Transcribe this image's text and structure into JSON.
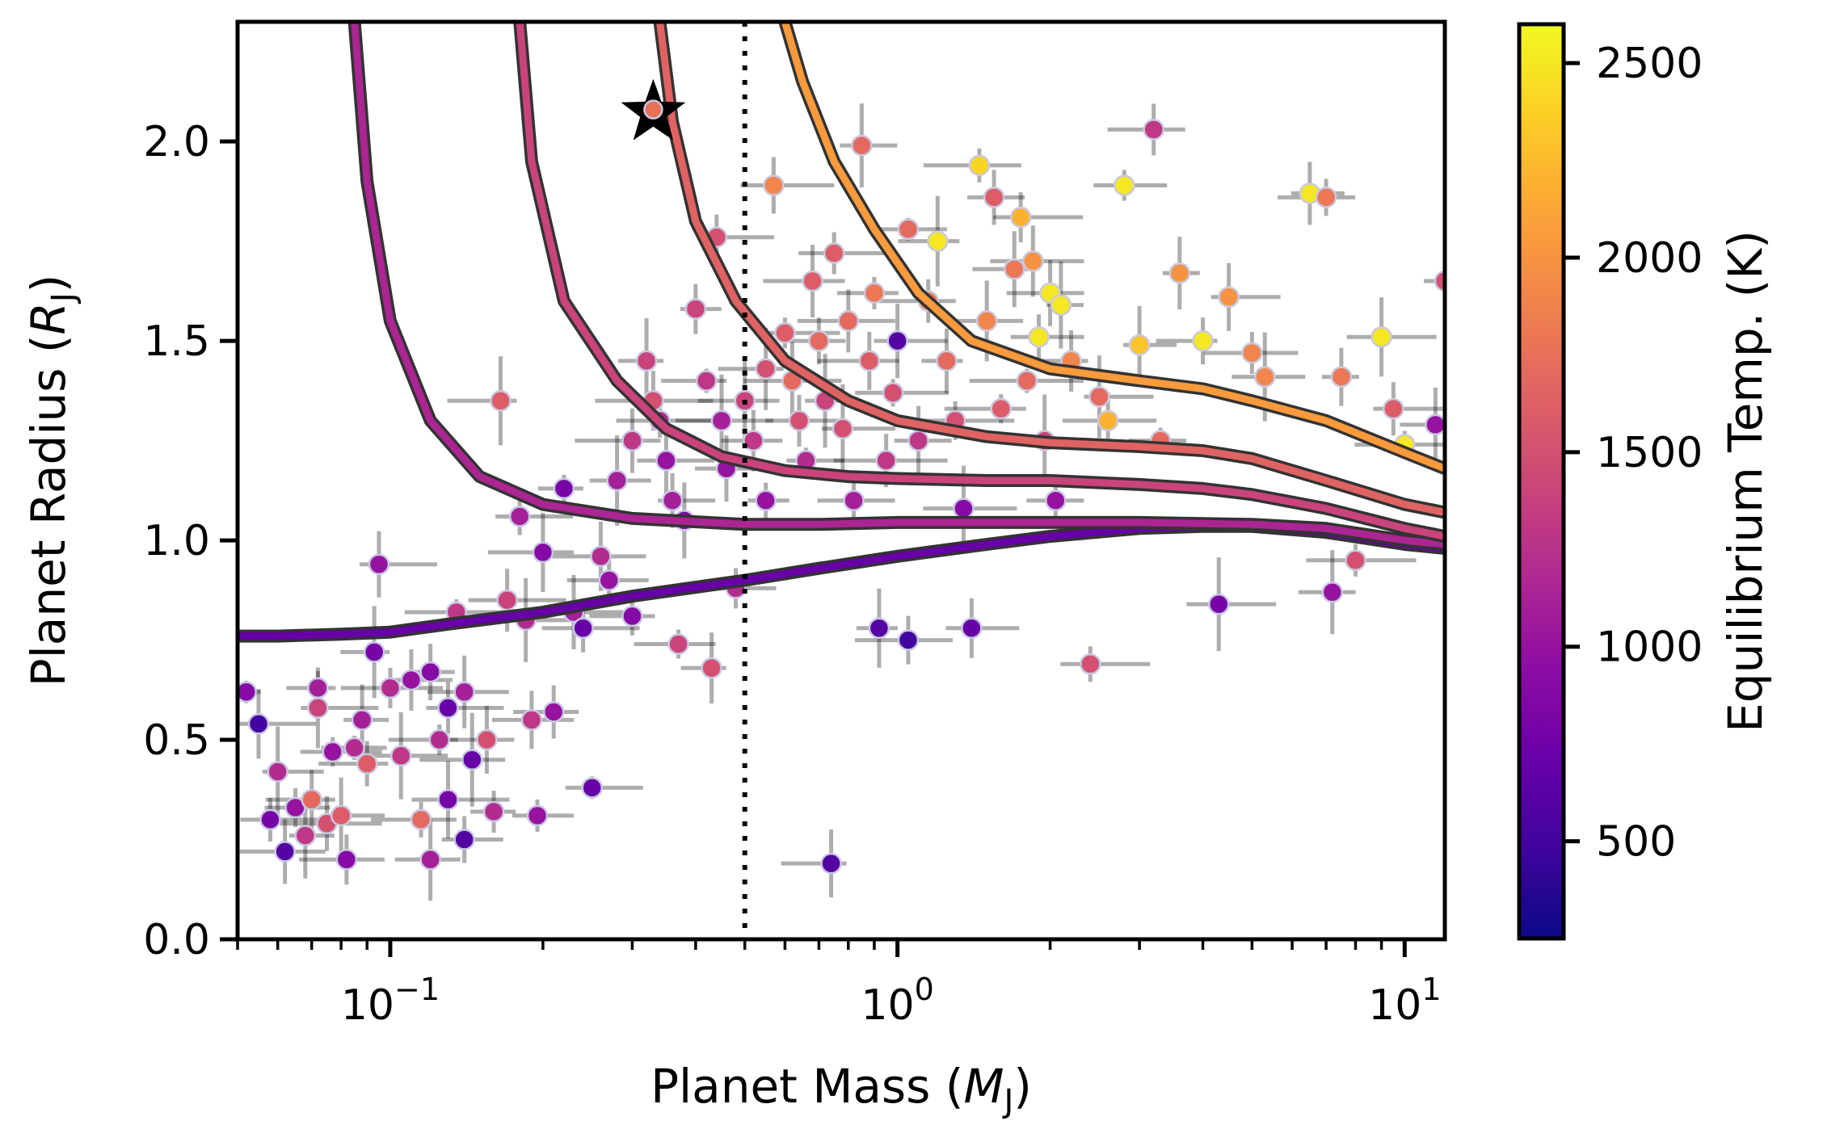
{
  "chart_data": {
    "type": "scatter",
    "title": "",
    "xlabel": "Planet Mass",
    "xlabel_symbol": "M",
    "xlabel_sub": "J",
    "ylabel": "Planet Radius",
    "ylabel_symbol": "R",
    "ylabel_sub": "J",
    "xscale": "log",
    "xlim": [
      0.05,
      12
    ],
    "ylim": [
      0,
      2.3
    ],
    "x_ticks": [
      {
        "value": 0.1,
        "base": "10",
        "exp": "−1"
      },
      {
        "value": 1,
        "base": "10",
        "exp": "0"
      },
      {
        "value": 10,
        "base": "10",
        "exp": "1"
      }
    ],
    "y_ticks": [
      {
        "value": 0.0,
        "label": "0.0"
      },
      {
        "value": 0.5,
        "label": "0.5"
      },
      {
        "value": 1.0,
        "label": "1.0"
      },
      {
        "value": 1.5,
        "label": "1.5"
      },
      {
        "value": 2.0,
        "label": "2.0"
      }
    ],
    "reference_line": {
      "x": 0.5,
      "style": "dotted"
    },
    "colorbar": {
      "label": "Equilibrium Temp. (K)",
      "vmin": 250,
      "vmax": 2600,
      "ticks": [
        {
          "value": 500,
          "label": "500"
        },
        {
          "value": 1000,
          "label": "1000"
        },
        {
          "value": 1500,
          "label": "1500"
        },
        {
          "value": 2000,
          "label": "2000"
        },
        {
          "value": 2500,
          "label": "2500"
        }
      ],
      "colormap": "plasma"
    },
    "highlight": {
      "mass": 0.33,
      "radius": 2.08,
      "teq": 1750,
      "marker": "star"
    },
    "model_curves": [
      {
        "name": "curve-teq-700",
        "teq": 700,
        "points": [
          [
            0.05,
            0.76
          ],
          [
            0.06,
            0.76
          ],
          [
            0.08,
            0.765
          ],
          [
            0.1,
            0.77
          ],
          [
            0.13,
            0.79
          ],
          [
            0.2,
            0.82
          ],
          [
            0.3,
            0.86
          ],
          [
            0.5,
            0.9
          ],
          [
            0.7,
            0.93
          ],
          [
            1,
            0.96
          ],
          [
            1.5,
            0.99
          ],
          [
            2,
            1.01
          ],
          [
            3,
            1.03
          ],
          [
            4,
            1.035
          ],
          [
            5,
            1.035
          ],
          [
            7,
            1.02
          ],
          [
            10,
            0.99
          ],
          [
            12,
            0.98
          ]
        ]
      },
      {
        "name": "curve-teq-1150",
        "teq": 1150,
        "points": [
          [
            0.085,
            2.3
          ],
          [
            0.09,
            1.9
          ],
          [
            0.1,
            1.55
          ],
          [
            0.12,
            1.3
          ],
          [
            0.15,
            1.16
          ],
          [
            0.2,
            1.09
          ],
          [
            0.3,
            1.055
          ],
          [
            0.5,
            1.04
          ],
          [
            0.7,
            1.04
          ],
          [
            1,
            1.045
          ],
          [
            1.5,
            1.045
          ],
          [
            2,
            1.045
          ],
          [
            3,
            1.045
          ],
          [
            5,
            1.04
          ],
          [
            7,
            1.03
          ],
          [
            10,
            1.0
          ],
          [
            12,
            0.99
          ]
        ]
      },
      {
        "name": "curve-teq-1400",
        "teq": 1400,
        "points": [
          [
            0.18,
            2.3
          ],
          [
            0.19,
            1.95
          ],
          [
            0.22,
            1.6
          ],
          [
            0.28,
            1.4
          ],
          [
            0.35,
            1.28
          ],
          [
            0.45,
            1.21
          ],
          [
            0.6,
            1.175
          ],
          [
            0.8,
            1.16
          ],
          [
            1,
            1.155
          ],
          [
            1.5,
            1.15
          ],
          [
            2,
            1.15
          ],
          [
            3,
            1.14
          ],
          [
            4,
            1.13
          ],
          [
            5,
            1.115
          ],
          [
            7,
            1.08
          ],
          [
            10,
            1.03
          ],
          [
            12,
            1.01
          ]
        ]
      },
      {
        "name": "curve-teq-1650",
        "teq": 1650,
        "points": [
          [
            0.34,
            2.3
          ],
          [
            0.36,
            2.05
          ],
          [
            0.4,
            1.8
          ],
          [
            0.48,
            1.6
          ],
          [
            0.6,
            1.45
          ],
          [
            0.8,
            1.35
          ],
          [
            1,
            1.3
          ],
          [
            1.5,
            1.26
          ],
          [
            2,
            1.245
          ],
          [
            3,
            1.235
          ],
          [
            4,
            1.225
          ],
          [
            5,
            1.205
          ],
          [
            7,
            1.15
          ],
          [
            10,
            1.09
          ],
          [
            12,
            1.07
          ]
        ]
      },
      {
        "name": "curve-teq-2050",
        "teq": 2050,
        "points": [
          [
            0.6,
            2.3
          ],
          [
            0.65,
            2.15
          ],
          [
            0.75,
            1.95
          ],
          [
            0.9,
            1.78
          ],
          [
            1.1,
            1.62
          ],
          [
            1.4,
            1.5
          ],
          [
            2,
            1.43
          ],
          [
            3,
            1.4
          ],
          [
            4,
            1.38
          ],
          [
            5,
            1.35
          ],
          [
            7,
            1.3
          ],
          [
            10,
            1.22
          ],
          [
            12,
            1.18
          ]
        ]
      }
    ],
    "series": [
      {
        "name": "planets",
        "points": [
          [
            0.052,
            0.62,
            900
          ],
          [
            0.055,
            0.54,
            500
          ],
          [
            0.058,
            0.3,
            800
          ],
          [
            0.06,
            0.42,
            1200
          ],
          [
            0.062,
            0.22,
            600
          ],
          [
            0.065,
            0.33,
            1000
          ],
          [
            0.068,
            0.26,
            1300
          ],
          [
            0.07,
            0.35,
            1700
          ],
          [
            0.072,
            0.63,
            1100
          ],
          [
            0.072,
            0.58,
            1400
          ],
          [
            0.075,
            0.29,
            1500
          ],
          [
            0.077,
            0.47,
            1000
          ],
          [
            0.08,
            0.31,
            1600
          ],
          [
            0.082,
            0.2,
            900
          ],
          [
            0.085,
            0.48,
            1200
          ],
          [
            0.088,
            0.55,
            1100
          ],
          [
            0.09,
            0.44,
            1600
          ],
          [
            0.093,
            0.72,
            800
          ],
          [
            0.095,
            0.94,
            1000
          ],
          [
            0.1,
            0.63,
            1200
          ],
          [
            0.105,
            0.46,
            1300
          ],
          [
            0.11,
            0.65,
            1000
          ],
          [
            0.115,
            0.3,
            1700
          ],
          [
            0.12,
            0.2,
            1100
          ],
          [
            0.12,
            0.67,
            900
          ],
          [
            0.125,
            0.5,
            1200
          ],
          [
            0.13,
            0.35,
            800
          ],
          [
            0.13,
            0.58,
            700
          ],
          [
            0.135,
            0.82,
            1300
          ],
          [
            0.14,
            0.62,
            1100
          ],
          [
            0.14,
            0.25,
            600
          ],
          [
            0.145,
            0.45,
            700
          ],
          [
            0.155,
            0.5,
            1500
          ],
          [
            0.16,
            0.32,
            1200
          ],
          [
            0.165,
            1.35,
            1600
          ],
          [
            0.17,
            0.85,
            1400
          ],
          [
            0.18,
            1.06,
            1100
          ],
          [
            0.185,
            0.8,
            1200
          ],
          [
            0.19,
            0.55,
            1300
          ],
          [
            0.195,
            0.31,
            1000
          ],
          [
            0.2,
            0.97,
            900
          ],
          [
            0.21,
            0.57,
            1000
          ],
          [
            0.22,
            1.13,
            800
          ],
          [
            0.23,
            0.82,
            1100
          ],
          [
            0.24,
            0.78,
            700
          ],
          [
            0.25,
            0.38,
            700
          ],
          [
            0.26,
            0.96,
            1200
          ],
          [
            0.27,
            0.9,
            1000
          ],
          [
            0.28,
            1.15,
            1100
          ],
          [
            0.3,
            1.25,
            1300
          ],
          [
            0.3,
            0.81,
            900
          ],
          [
            0.32,
            1.45,
            1400
          ],
          [
            0.33,
            1.35,
            1500
          ],
          [
            0.34,
            1.3,
            1200
          ],
          [
            0.35,
            1.2,
            1000
          ],
          [
            0.36,
            1.1,
            1100
          ],
          [
            0.37,
            0.74,
            1400
          ],
          [
            0.38,
            1.05,
            900
          ],
          [
            0.4,
            1.58,
            1400
          ],
          [
            0.42,
            1.4,
            1300
          ],
          [
            0.43,
            0.68,
            1500
          ],
          [
            0.44,
            1.76,
            1500
          ],
          [
            0.45,
            1.3,
            1100
          ],
          [
            0.46,
            1.18,
            1000
          ],
          [
            0.48,
            0.88,
            1200
          ],
          [
            0.5,
            1.35,
            1400
          ],
          [
            0.52,
            1.25,
            1300
          ],
          [
            0.55,
            1.1,
            1000
          ],
          [
            0.55,
            1.43,
            1500
          ],
          [
            0.57,
            1.89,
            1900
          ],
          [
            0.6,
            1.52,
            1600
          ],
          [
            0.62,
            1.4,
            1700
          ],
          [
            0.64,
            1.3,
            1500
          ],
          [
            0.66,
            1.2,
            1200
          ],
          [
            0.68,
            1.65,
            1600
          ],
          [
            0.7,
            1.5,
            1700
          ],
          [
            0.72,
            1.35,
            1400
          ],
          [
            0.74,
            0.19,
            600
          ],
          [
            0.75,
            1.72,
            1600
          ],
          [
            0.78,
            1.28,
            1500
          ],
          [
            0.8,
            1.55,
            1700
          ],
          [
            0.82,
            1.1,
            1100
          ],
          [
            0.85,
            1.99,
            1700
          ],
          [
            0.88,
            1.45,
            1600
          ],
          [
            0.9,
            1.62,
            1800
          ],
          [
            0.92,
            0.78,
            600
          ],
          [
            0.95,
            1.2,
            1300
          ],
          [
            0.98,
            1.37,
            1500
          ],
          [
            1.0,
            1.5,
            600
          ],
          [
            1.05,
            0.75,
            500
          ],
          [
            1.05,
            1.78,
            1700
          ],
          [
            1.1,
            1.25,
            1300
          ],
          [
            1.15,
            1.6,
            1800
          ],
          [
            1.2,
            1.75,
            2500
          ],
          [
            1.25,
            1.45,
            1700
          ],
          [
            1.3,
            1.3,
            1500
          ],
          [
            1.35,
            1.08,
            900
          ],
          [
            1.4,
            0.78,
            700
          ],
          [
            1.45,
            1.94,
            2400
          ],
          [
            1.5,
            1.55,
            1900
          ],
          [
            1.55,
            1.86,
            1600
          ],
          [
            1.6,
            1.33,
            1600
          ],
          [
            1.7,
            1.68,
            1800
          ],
          [
            1.75,
            1.81,
            2200
          ],
          [
            1.8,
            1.4,
            1700
          ],
          [
            1.85,
            1.7,
            2000
          ],
          [
            1.9,
            1.51,
            2500
          ],
          [
            1.95,
            1.25,
            1400
          ],
          [
            2.0,
            1.62,
            2500
          ],
          [
            2.05,
            1.1,
            1000
          ],
          [
            2.1,
            1.59,
            2500
          ],
          [
            2.2,
            1.45,
            1900
          ],
          [
            2.4,
            0.69,
            1500
          ],
          [
            2.5,
            1.36,
            1700
          ],
          [
            2.6,
            1.3,
            2200
          ],
          [
            2.8,
            1.89,
            2500
          ],
          [
            3.0,
            1.49,
            2300
          ],
          [
            3.2,
            2.03,
            1300
          ],
          [
            3.3,
            1.25,
            1700
          ],
          [
            3.6,
            1.67,
            2000
          ],
          [
            4.0,
            1.5,
            2500
          ],
          [
            4.3,
            0.84,
            800
          ],
          [
            4.5,
            1.61,
            2000
          ],
          [
            5.0,
            1.47,
            1900
          ],
          [
            5.3,
            1.41,
            1900
          ],
          [
            6.5,
            1.87,
            2500
          ],
          [
            7.0,
            1.86,
            1800
          ],
          [
            7.2,
            0.87,
            1000
          ],
          [
            7.5,
            1.41,
            1800
          ],
          [
            8.0,
            0.95,
            1500
          ],
          [
            9.0,
            1.51,
            2500
          ],
          [
            9.5,
            1.33,
            1600
          ],
          [
            10.0,
            1.24,
            2500
          ],
          [
            11.5,
            1.29,
            1000
          ],
          [
            12.0,
            1.65,
            1500
          ]
        ]
      }
    ]
  }
}
